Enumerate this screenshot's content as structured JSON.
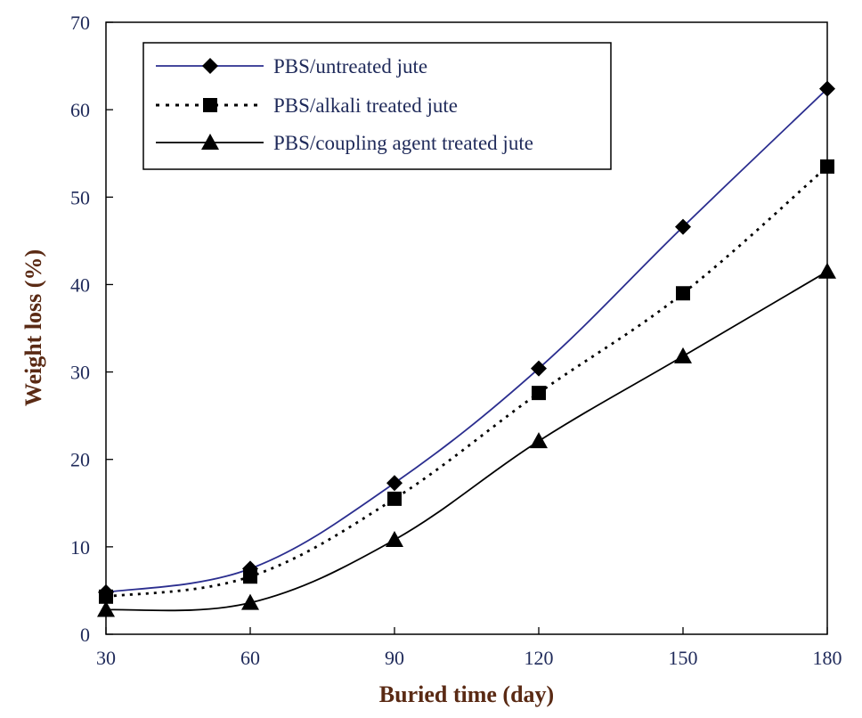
{
  "chart_data": {
    "type": "line",
    "xlabel": "Buried time (day)",
    "ylabel": "Weight loss (%)",
    "xlim": [
      30,
      180
    ],
    "ylim": [
      0,
      70
    ],
    "xticks": [
      "30",
      "60",
      "90",
      "120",
      "150",
      "180"
    ],
    "yticks": [
      "0",
      "10",
      "20",
      "30",
      "40",
      "50",
      "60",
      "70"
    ],
    "x": [
      30,
      60,
      90,
      120,
      150,
      180
    ],
    "grid": false,
    "legend_position": "top-left",
    "series": [
      {
        "name": "PBS/untreated jute",
        "values": [
          4.8,
          7.5,
          17.3,
          30.4,
          46.6,
          62.4
        ],
        "marker": "diamond",
        "line": "solid",
        "color": "#2b2e8f"
      },
      {
        "name": "PBS/alkali treated jute",
        "values": [
          4.3,
          6.6,
          15.5,
          27.6,
          39.0,
          53.5
        ],
        "marker": "square",
        "line": "dotted",
        "color": "#000000"
      },
      {
        "name": "PBS/coupling agent treated jute",
        "values": [
          2.8,
          3.6,
          10.8,
          22.1,
          31.8,
          41.5
        ],
        "marker": "triangle",
        "line": "solid",
        "color": "#000000"
      }
    ]
  }
}
